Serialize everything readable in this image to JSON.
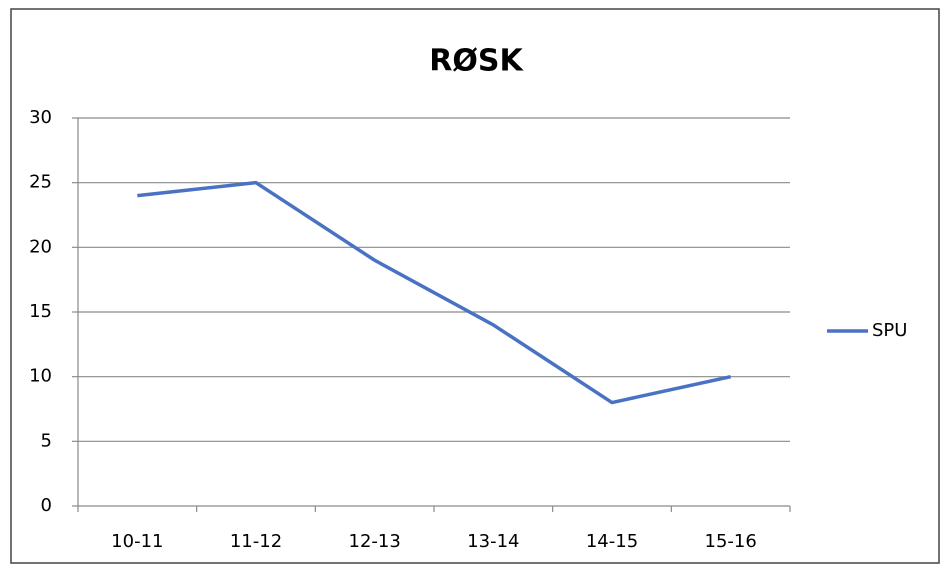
{
  "chart_data": {
    "type": "line",
    "title": "RØSK",
    "categories": [
      "10-11",
      "11-12",
      "12-13",
      "13-14",
      "14-15",
      "15-16"
    ],
    "series": [
      {
        "name": "SPU",
        "color": "#4a72c4",
        "values": [
          24,
          25,
          19,
          14,
          8,
          10
        ]
      }
    ],
    "ylim": [
      0,
      30
    ],
    "yticks": [
      0,
      5,
      10,
      15,
      20,
      25,
      30
    ],
    "grid": true,
    "legend": "right"
  }
}
